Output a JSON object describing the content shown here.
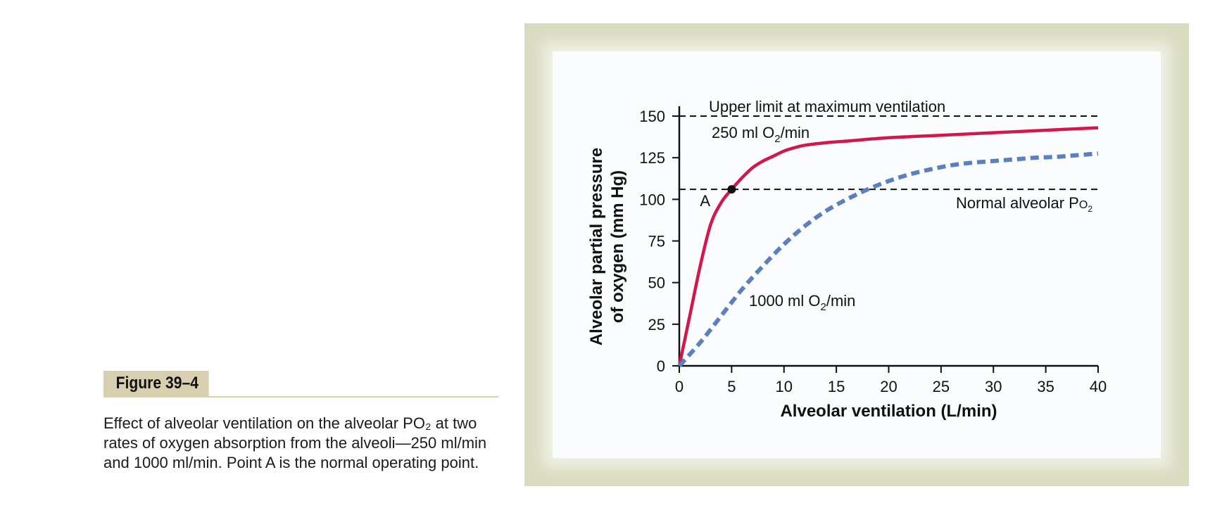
{
  "figure": {
    "label": "Figure 39–4",
    "caption": "Effect of alveolar ventilation on the alveolar PO₂ at two rates of oxygen absorption from the alveoli—250 ml/min and 1000 ml/min. Point A is the normal operating point."
  },
  "chart_data": {
    "type": "line",
    "xlabel": "Alveolar ventilation (L/min)",
    "ylabel": [
      "Alveolar partial pressure",
      "of oxygen (mm Hg)"
    ],
    "xlim": [
      0,
      40
    ],
    "ylim": [
      0,
      150
    ],
    "xticks": [
      0,
      5,
      10,
      15,
      20,
      25,
      30,
      35,
      40
    ],
    "yticks": [
      0,
      25,
      50,
      75,
      100,
      125,
      150
    ],
    "series": [
      {
        "name": "250 ml O2/min",
        "color": "#d4174a",
        "style": "solid",
        "x": [
          0,
          1,
          2,
          3,
          4,
          5,
          6,
          7,
          8,
          9,
          10,
          11,
          12,
          14,
          16,
          20,
          25,
          30,
          35,
          40
        ],
        "y": [
          0,
          30,
          60,
          85,
          98,
          106,
          113,
          119,
          123,
          126,
          129,
          131,
          132.5,
          134,
          135,
          137,
          138.5,
          140,
          141.5,
          143
        ]
      },
      {
        "name": "1000 ml O2/min",
        "color": "#5a80bf",
        "style": "dashed",
        "x": [
          0,
          2,
          4,
          6,
          8,
          10,
          12,
          14,
          16,
          18,
          20,
          22,
          24,
          26,
          28,
          30,
          32,
          34,
          36,
          38,
          40
        ],
        "y": [
          0,
          14,
          30,
          46,
          60,
          73,
          84,
          93,
          100,
          106,
          111,
          115,
          118,
          120.5,
          122,
          123,
          124,
          125,
          125.5,
          126.5,
          127.5
        ]
      }
    ],
    "reference_lines": [
      {
        "y": 150,
        "label": "Upper limit at maximum ventilation",
        "style": "dashed"
      },
      {
        "y": 106,
        "label_main": "Normal alveolar P",
        "label_sub": "O",
        "label_sub2": "2",
        "style": "dashed"
      }
    ],
    "point": {
      "x": 5,
      "y": 106,
      "label": "A"
    },
    "annotations": {
      "s1_main": "250 ml O",
      "s1_sub": "2",
      "s1_tail": "/min",
      "s2_main": "1000 ml O",
      "s2_sub": "2",
      "s2_tail": "/min"
    },
    "grid": false
  }
}
